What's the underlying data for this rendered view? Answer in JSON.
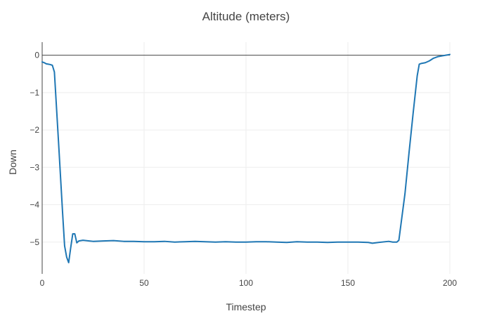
{
  "chart_data": {
    "type": "line",
    "title": "Altitude (meters)",
    "xlabel": "Timestep",
    "ylabel": "Down",
    "xlim": [
      0,
      200
    ],
    "ylim": [
      -5.85,
      0.35
    ],
    "x_ticks": [
      0,
      50,
      100,
      150,
      200
    ],
    "y_ticks": [
      0,
      -1,
      -2,
      -3,
      -4,
      -5
    ],
    "x_tick_labels": [
      "0",
      "50",
      "100",
      "150",
      "200"
    ],
    "y_tick_labels": [
      "0",
      "−1",
      "−2",
      "−3",
      "−4",
      "−5"
    ],
    "grid": true,
    "legend": "none",
    "series": [
      {
        "color": "#1f77b4",
        "x": [
          0,
          1,
          2,
          3,
          4,
          5,
          6,
          8,
          10,
          11,
          12,
          13,
          14,
          15,
          16,
          17,
          18,
          20,
          25,
          30,
          35,
          40,
          45,
          50,
          55,
          60,
          65,
          70,
          75,
          80,
          85,
          90,
          95,
          100,
          105,
          110,
          115,
          120,
          125,
          130,
          135,
          140,
          145,
          150,
          155,
          160,
          162,
          165,
          170,
          172,
          174,
          175,
          178,
          180,
          182,
          184,
          185,
          186,
          188,
          190,
          192,
          194,
          196,
          198,
          200
        ],
        "y": [
          -0.18,
          -0.2,
          -0.23,
          -0.24,
          -0.25,
          -0.27,
          -0.45,
          -2.3,
          -4.2,
          -5.1,
          -5.4,
          -5.55,
          -5.15,
          -4.78,
          -4.78,
          -5.02,
          -4.97,
          -4.95,
          -4.98,
          -4.97,
          -4.96,
          -4.98,
          -4.98,
          -4.99,
          -4.99,
          -4.98,
          -5.0,
          -4.99,
          -4.98,
          -4.99,
          -5.0,
          -4.99,
          -5.0,
          -5.0,
          -4.99,
          -4.99,
          -5.0,
          -5.01,
          -4.99,
          -5.0,
          -5.0,
          -5.01,
          -5.0,
          -5.0,
          -5.0,
          -5.01,
          -5.03,
          -5.01,
          -4.98,
          -5.0,
          -5.0,
          -4.95,
          -3.7,
          -2.6,
          -1.55,
          -0.55,
          -0.24,
          -0.22,
          -0.2,
          -0.15,
          -0.08,
          -0.04,
          -0.02,
          0.0,
          0.02
        ]
      }
    ]
  }
}
